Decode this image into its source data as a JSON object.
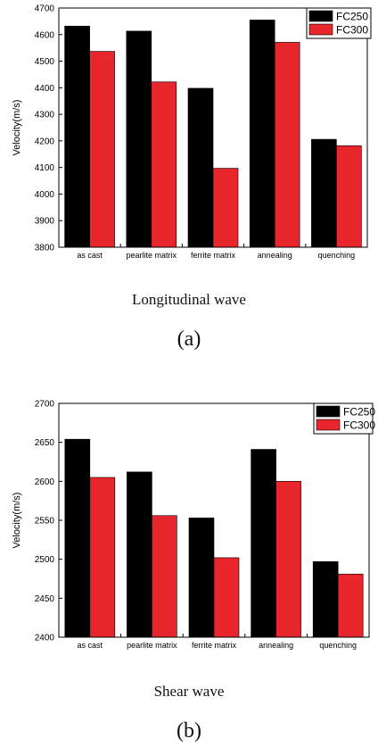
{
  "chart_data": [
    {
      "type": "bar",
      "title": "Longitudinal wave",
      "panel_label": "(a)",
      "ylabel": "Velocity(m/s)",
      "xlabel": "",
      "categories": [
        "as cast",
        "pearlite matrix",
        "ferrite matrix",
        "annealing",
        "quenching"
      ],
      "series": [
        {
          "name": "FC250",
          "color": "#000000",
          "values": [
            4632,
            4613,
            4398,
            4655,
            4206
          ]
        },
        {
          "name": "FC300",
          "color": "#e8262b",
          "values": [
            4537,
            4422,
            4097,
            4571,
            4182
          ]
        }
      ],
      "ylim": [
        3800,
        4700
      ],
      "yticks": [
        3800,
        3900,
        4000,
        4100,
        4200,
        4300,
        4400,
        4500,
        4600,
        4700
      ],
      "legend_position": "top-right",
      "grid": false
    },
    {
      "type": "bar",
      "title": "Shear wave",
      "panel_label": "(b)",
      "ylabel": "Velocity(m/s)",
      "xlabel": "",
      "categories": [
        "as cast",
        "pearlite matrix",
        "ferrite matrix",
        "annealing",
        "quenching"
      ],
      "series": [
        {
          "name": "FC250",
          "color": "#000000",
          "values": [
            2654,
            2612,
            2553,
            2641,
            2497
          ]
        },
        {
          "name": "FC300",
          "color": "#e8262b",
          "values": [
            2605,
            2556,
            2502,
            2600,
            2481
          ]
        }
      ],
      "ylim": [
        2400,
        2700
      ],
      "yticks": [
        2400,
        2450,
        2500,
        2550,
        2600,
        2650,
        2700
      ],
      "legend_position": "top-right",
      "grid": false
    }
  ]
}
